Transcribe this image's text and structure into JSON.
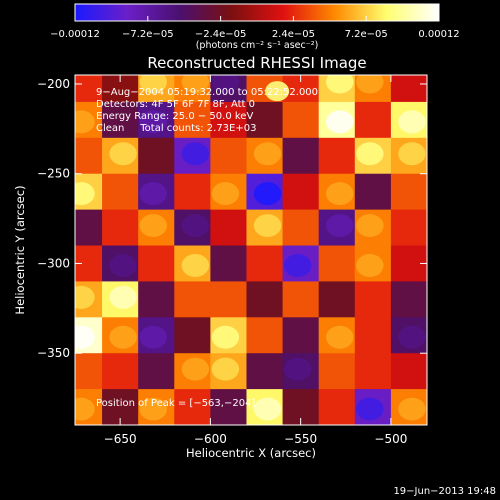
{
  "chart_data": {
    "type": "heatmap",
    "title": "Reconstructed RHESSI Image",
    "xlabel": "Heliocentric X (arcsec)",
    "ylabel": "Heliocentric Y (arcsec)",
    "xlim": [
      -675,
      -480
    ],
    "ylim": [
      -390,
      -195
    ],
    "xticks": [
      -650,
      -600,
      -550,
      -500
    ],
    "xtick_labels": [
      "−650",
      "−600",
      "−550",
      "−500"
    ],
    "yticks": [
      -200,
      -250,
      -300,
      -350
    ],
    "ytick_labels": [
      "−200",
      "−250",
      "−300",
      "−350"
    ],
    "colorbar": {
      "range": [
        -0.00012,
        0.00012
      ],
      "ticks": [
        -0.00012,
        -7.2e-05,
        -2.4e-05,
        2.4e-05,
        7.2e-05,
        0.00012
      ],
      "tick_labels": [
        "−0.00012",
        "−7.2e−05",
        "−2.4e−05",
        "2.4e−05",
        "7.2e−05",
        "0.00012"
      ],
      "unit_label": "(photons cm⁻² s⁻¹ asec⁻²)",
      "colors": [
        "#1a1aff",
        "#6a1fc8",
        "#4a1070",
        "#7a1010",
        "#e01010",
        "#ff8a00",
        "#ffff70",
        "#ffffff"
      ]
    },
    "info_lines": [
      "9−Aug−2004 05:19:32.000 to 05:22:52.000",
      "Detectors: 4F 5F 6F 7F 8F, Att 0",
      "Energy Range: 25.0 − 50.0 keV",
      "Clean     Total counts: 2.73E+03"
    ],
    "peak_label": "Position of Peak = [−563,−204]",
    "peak_position": [
      -563,
      -204
    ],
    "grid_x": [
      -670,
      -650,
      -630,
      -610,
      -590,
      -570,
      -550,
      -530,
      -510,
      -490
    ],
    "grid_y": [
      -200,
      -220,
      -240,
      -260,
      -280,
      -300,
      -320,
      -340,
      -360,
      -380
    ],
    "grid_values": [
      [
        0.2,
        -0.1,
        0.5,
        0.4,
        -0.4,
        0.3,
        0.2,
        0.6,
        0.4,
        0.1
      ],
      [
        0.4,
        -0.3,
        -0.5,
        0.3,
        0.1,
        -0.2,
        0.3,
        0.8,
        0.2,
        0.7
      ],
      [
        0.3,
        0.5,
        -0.2,
        -0.7,
        0.3,
        0.4,
        -0.3,
        0.2,
        0.6,
        0.5
      ],
      [
        0.6,
        0.3,
        -0.5,
        0.2,
        0.4,
        -0.8,
        0.1,
        0.4,
        -0.3,
        0.3
      ],
      [
        -0.3,
        0.2,
        0.4,
        -0.4,
        0.1,
        0.5,
        0.3,
        -0.5,
        0.4,
        0.2
      ],
      [
        0.2,
        -0.4,
        0.2,
        0.5,
        -0.3,
        0.2,
        -0.7,
        0.3,
        0.4,
        0.1
      ],
      [
        0.5,
        0.7,
        -0.3,
        0.3,
        0.3,
        -0.2,
        0.3,
        -0.2,
        0.2,
        -0.3
      ],
      [
        0.9,
        0.4,
        -0.5,
        -0.2,
        0.6,
        0.3,
        -0.3,
        0.4,
        0.2,
        -0.4
      ],
      [
        0.3,
        0.2,
        -0.3,
        0.4,
        0.5,
        -0.3,
        -0.4,
        0.3,
        0.2,
        0.1
      ],
      [
        0.4,
        -0.2,
        0.4,
        0.2,
        -0.3,
        0.7,
        -0.2,
        0.2,
        -0.7,
        0.4
      ]
    ]
  },
  "timestamp": "19−Jun−2013 19:48"
}
